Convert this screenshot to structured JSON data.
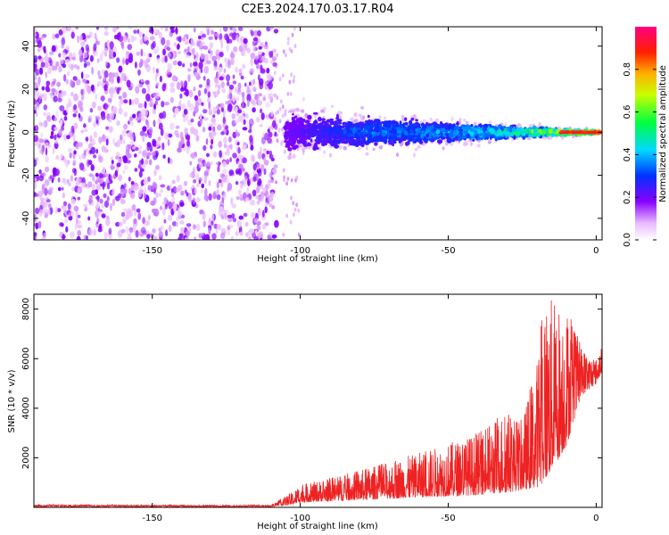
{
  "title": "C2E3.2024.170.03.17.R04",
  "chart_data": [
    {
      "type": "heatmap",
      "xlabel": "Height of straight line (km)",
      "ylabel": "Frequency (Hz)",
      "xlim": [
        -190,
        2
      ],
      "ylim": [
        -50,
        49
      ],
      "xticks": [
        -150,
        -100,
        -50,
        0
      ],
      "yticks": [
        -40,
        -20,
        0,
        20,
        40
      ],
      "colorbar": {
        "label": "Normalized spectral amplitude",
        "range": [
          0,
          1
        ],
        "ticks": [
          0.0,
          0.2,
          0.4,
          0.6,
          0.8
        ],
        "tick_labels": [
          "0.0",
          "0.2",
          "0.4",
          "0.6",
          "0.8"
        ],
        "colormap": "rainbow (white-purple-blue-cyan-green-yellow-red-magenta)"
      },
      "features": {
        "noise_region_x": [
          -190,
          -108
        ],
        "noise_amplitude": [
          0.05,
          0.2
        ],
        "signal_band_center_hz": 0,
        "signal_band_halfwidth_hz": [
          [
            -105,
            12
          ],
          [
            -50,
            6
          ],
          [
            -20,
            3
          ],
          [
            0,
            1
          ]
        ],
        "signal_amplitude_trend": [
          [
            -105,
            0.2
          ],
          [
            -80,
            0.35
          ],
          [
            -50,
            0.4
          ],
          [
            -25,
            0.55
          ],
          [
            -10,
            0.85
          ],
          [
            0,
            0.9
          ]
        ]
      }
    },
    {
      "type": "line",
      "xlabel": "Height of straight line (km)",
      "ylabel": "SNR (10 * v/v)",
      "xlim": [
        -190,
        2
      ],
      "ylim": [
        0,
        8600
      ],
      "xticks": [
        -150,
        -100,
        -50,
        0
      ],
      "yticks": [
        2000,
        4000,
        6000,
        8000
      ],
      "color": "#ee2222",
      "envelope": {
        "x": [
          -190,
          -150,
          -110,
          -103,
          -100,
          -80,
          -60,
          -40,
          -30,
          -25,
          -20,
          -18,
          -15,
          -10,
          -5,
          0,
          2
        ],
        "y_max": [
          120,
          100,
          90,
          600,
          900,
          1500,
          2200,
          3000,
          4000,
          3500,
          6000,
          8600,
          8500,
          8200,
          6500,
          6000,
          6500
        ],
        "y_min": [
          30,
          30,
          30,
          100,
          200,
          300,
          400,
          500,
          600,
          700,
          800,
          1000,
          1500,
          2500,
          4500,
          5000,
          5500
        ]
      }
    }
  ]
}
